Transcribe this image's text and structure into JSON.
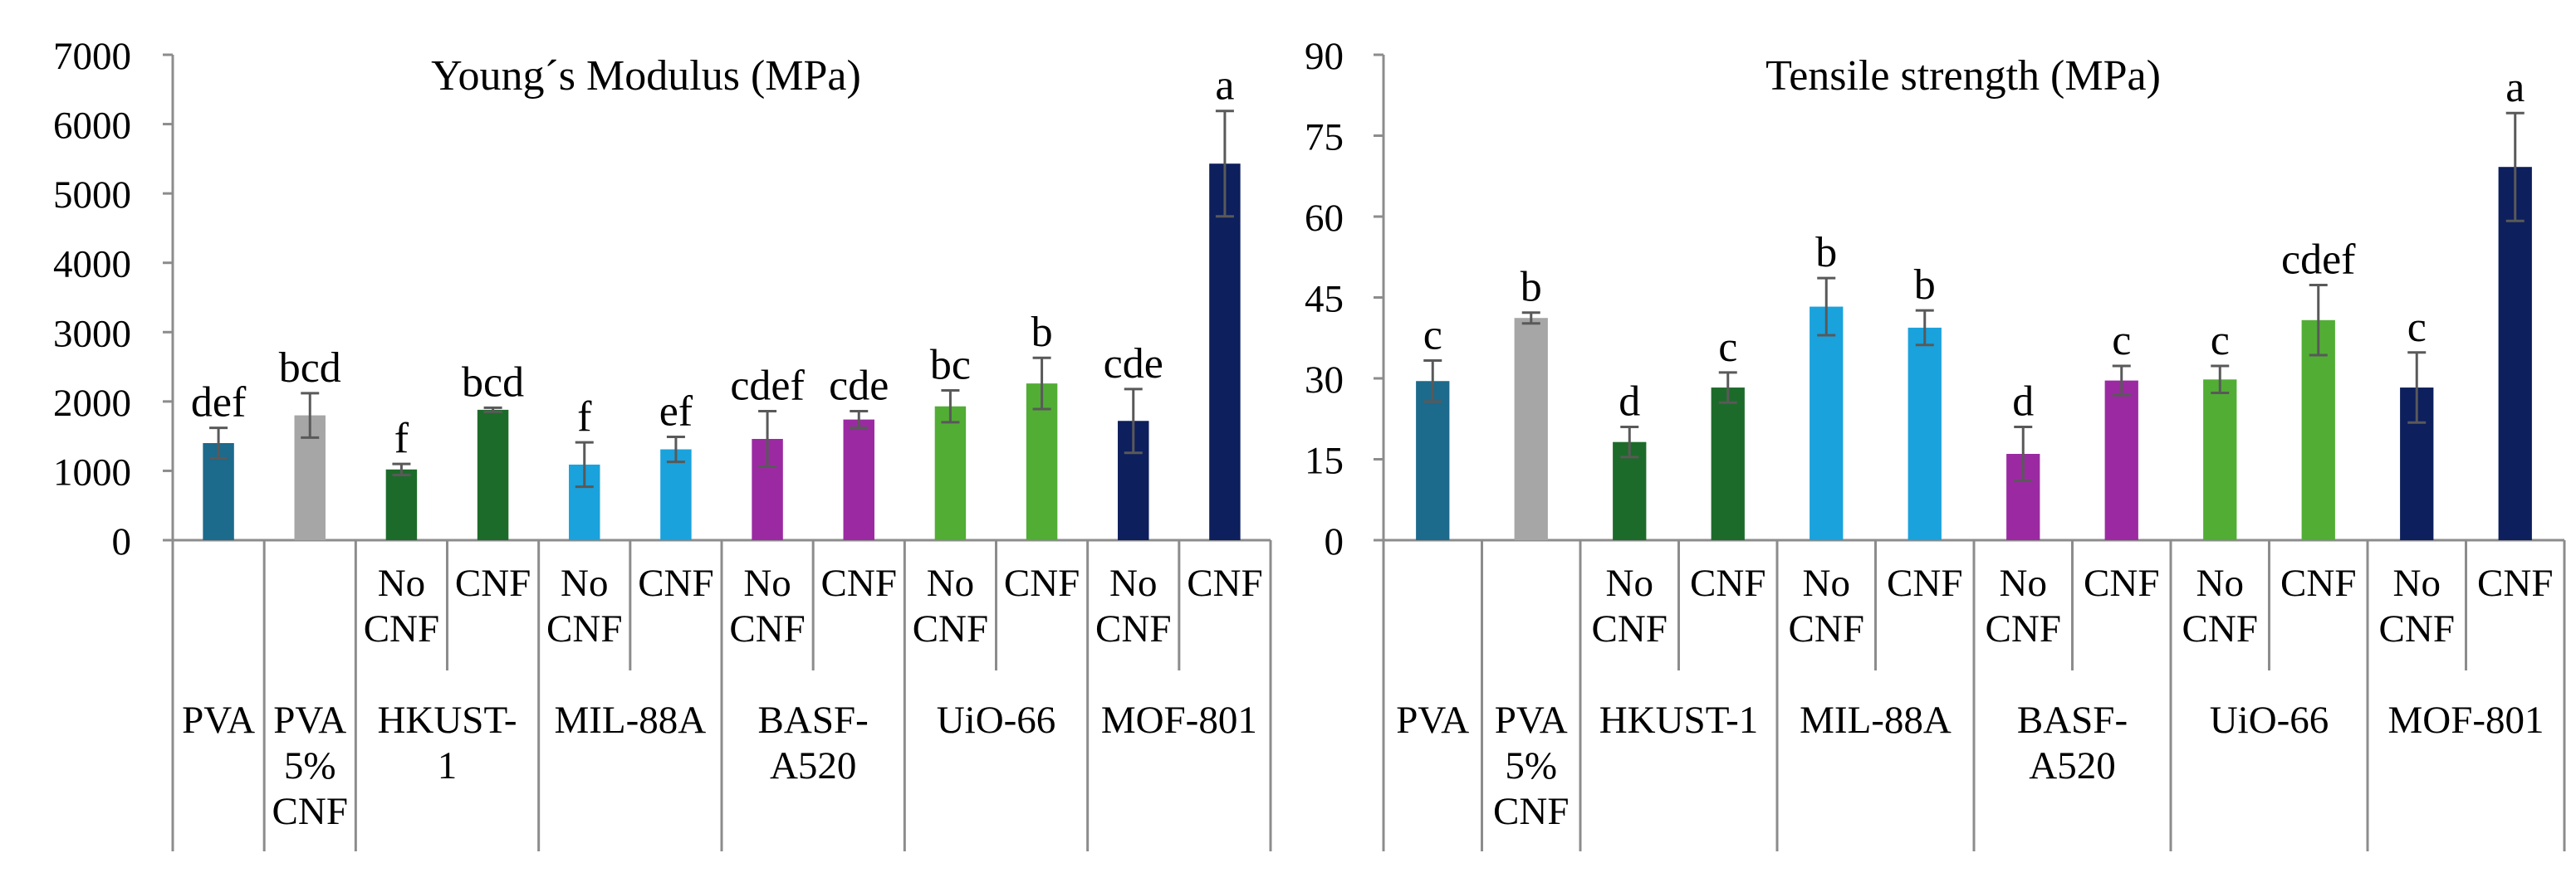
{
  "chart_data": [
    {
      "type": "bar",
      "title": "Young´s Modulus (MPa)",
      "xlabel": "",
      "ylabel": "",
      "ylim": [
        0,
        7000
      ],
      "yticks": [
        "0",
        "1000",
        "2000",
        "3000",
        "4000",
        "5000",
        "6000",
        "7000"
      ],
      "groups": [
        {
          "label": [
            "PVA"
          ],
          "span": 1
        },
        {
          "label": [
            "PVA",
            "5%",
            "CNF"
          ],
          "span": 1
        },
        {
          "label": [
            "HKUST-",
            "1"
          ],
          "span": 2
        },
        {
          "label": [
            "MIL-88A"
          ],
          "span": 2
        },
        {
          "label": [
            "BASF-",
            "A520"
          ],
          "span": 2
        },
        {
          "label": [
            "UiO-66"
          ],
          "span": 2
        },
        {
          "label": [
            "MOF-801"
          ],
          "span": 2
        }
      ],
      "bars": [
        {
          "sub": [],
          "value": 1400,
          "error": 220,
          "color": "#1c6a8c",
          "letter": "def"
        },
        {
          "sub": [],
          "value": 1800,
          "error": 320,
          "color": "#a6a6a6",
          "letter": "bcd"
        },
        {
          "sub": [
            "No",
            "CNF"
          ],
          "value": 1020,
          "error": 80,
          "color": "#1d6b2a",
          "letter": "f"
        },
        {
          "sub": [
            "CNF"
          ],
          "value": 1880,
          "error": 30,
          "color": "#1d6b2a",
          "letter": "bcd"
        },
        {
          "sub": [
            "No",
            "CNF"
          ],
          "value": 1090,
          "error": 320,
          "color": "#1aa2dc",
          "letter": "f"
        },
        {
          "sub": [
            "CNF"
          ],
          "value": 1310,
          "error": 180,
          "color": "#1aa2dc",
          "letter": "ef"
        },
        {
          "sub": [
            "No",
            "CNF"
          ],
          "value": 1460,
          "error": 400,
          "color": "#9b2aa2",
          "letter": "cdef"
        },
        {
          "sub": [
            "CNF"
          ],
          "value": 1740,
          "error": 120,
          "color": "#9b2aa2",
          "letter": "cde"
        },
        {
          "sub": [
            "No",
            "CNF"
          ],
          "value": 1930,
          "error": 230,
          "color": "#52ad35",
          "letter": "bc"
        },
        {
          "sub": [
            "CNF"
          ],
          "value": 2260,
          "error": 370,
          "color": "#52ad35",
          "letter": "b"
        },
        {
          "sub": [
            "No",
            "CNF"
          ],
          "value": 1720,
          "error": 460,
          "color": "#0d1f5c",
          "letter": "cde"
        },
        {
          "sub": [
            "CNF"
          ],
          "value": 5430,
          "error": 760,
          "color": "#0d1f5c",
          "letter": "a"
        }
      ]
    },
    {
      "type": "bar",
      "title": "Tensile  strength (MPa)",
      "xlabel": "",
      "ylabel": "",
      "ylim": [
        0,
        90
      ],
      "yticks": [
        "0",
        "15",
        "30",
        "45",
        "60",
        "75",
        "90"
      ],
      "groups": [
        {
          "label": [
            "PVA"
          ],
          "span": 1
        },
        {
          "label": [
            "PVA",
            "5%",
            "CNF"
          ],
          "span": 1
        },
        {
          "label": [
            "HKUST-1"
          ],
          "span": 2
        },
        {
          "label": [
            "MIL-88A"
          ],
          "span": 2
        },
        {
          "label": [
            "BASF-",
            "A520"
          ],
          "span": 2
        },
        {
          "label": [
            "UiO-66"
          ],
          "span": 2
        },
        {
          "label": [
            "MOF-801"
          ],
          "span": 2
        }
      ],
      "bars": [
        {
          "sub": [],
          "value": 29.5,
          "error": 3.8,
          "color": "#1c6a8c",
          "letter": "c"
        },
        {
          "sub": [],
          "value": 41.2,
          "error": 1.0,
          "color": "#a6a6a6",
          "letter": "b"
        },
        {
          "sub": [
            "No",
            "CNF"
          ],
          "value": 18.2,
          "error": 2.8,
          "color": "#1d6b2a",
          "letter": "d"
        },
        {
          "sub": [
            "CNF"
          ],
          "value": 28.3,
          "error": 2.8,
          "color": "#1d6b2a",
          "letter": "c"
        },
        {
          "sub": [
            "No",
            "CNF"
          ],
          "value": 43.3,
          "error": 5.3,
          "color": "#1aa2dc",
          "letter": "b"
        },
        {
          "sub": [
            "CNF"
          ],
          "value": 39.4,
          "error": 3.2,
          "color": "#1aa2dc",
          "letter": "b"
        },
        {
          "sub": [
            "No",
            "CNF"
          ],
          "value": 16.0,
          "error": 5.0,
          "color": "#9b2aa2",
          "letter": "d"
        },
        {
          "sub": [
            "CNF"
          ],
          "value": 29.6,
          "error": 2.7,
          "color": "#9b2aa2",
          "letter": "c"
        },
        {
          "sub": [
            "No",
            "CNF"
          ],
          "value": 29.8,
          "error": 2.5,
          "color": "#52ad35",
          "letter": "c"
        },
        {
          "sub": [
            "CNF"
          ],
          "value": 40.8,
          "error": 6.5,
          "color": "#52ad35",
          "letter": "cdef"
        },
        {
          "sub": [
            "No",
            "CNF"
          ],
          "value": 28.3,
          "error": 6.5,
          "color": "#0d1f5c",
          "letter": "c"
        },
        {
          "sub": [
            "CNF"
          ],
          "value": 69.2,
          "error": 10.0,
          "color": "#0d1f5c",
          "letter": "a"
        }
      ]
    }
  ]
}
